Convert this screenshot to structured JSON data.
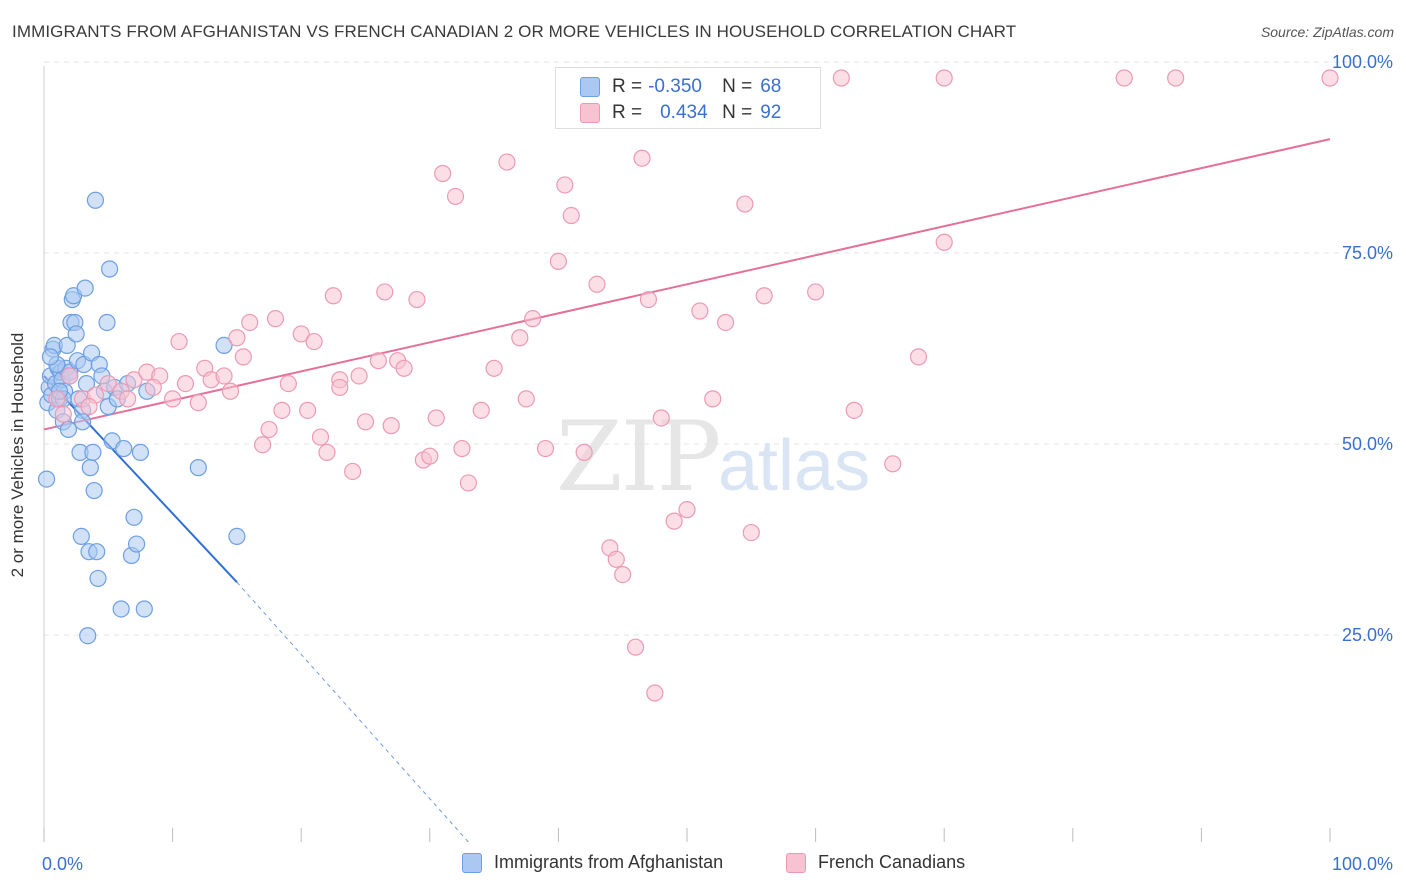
{
  "header": {
    "title": "IMMIGRANTS FROM AFGHANISTAN VS FRENCH CANADIAN 2 OR MORE VEHICLES IN HOUSEHOLD CORRELATION CHART",
    "source": "Source: ZipAtlas.com"
  },
  "watermark": {
    "zip": "ZIP",
    "atlas": "atlas"
  },
  "legend": {
    "r_label": "R =",
    "n_label": "N =",
    "series": [
      {
        "r": "-0.350",
        "n": "68"
      },
      {
        "r": "0.434",
        "n": "92"
      }
    ]
  },
  "bottom_legend": {
    "items": [
      "Immigrants from Afghanistan",
      "French Canadians"
    ]
  },
  "chart_data": {
    "type": "scatter",
    "title": "IMMIGRANTS FROM AFGHANISTAN VS FRENCH CANADIAN 2 OR MORE VEHICLES IN HOUSEHOLD CORRELATION CHART",
    "xlabel": "",
    "ylabel": "2 or more Vehicles in Household",
    "xlim": [
      0,
      100
    ],
    "ylim": [
      0,
      100
    ],
    "x_tick_labels": [
      "0.0%",
      "100.0%"
    ],
    "y_tick_labels": [
      "25.0%",
      "50.0%",
      "75.0%",
      "100.0%"
    ],
    "y_ticks": [
      25,
      50,
      75,
      100
    ],
    "grid": true,
    "legend_position": "top-center",
    "colors": {
      "blue_fill": "#aac8f2",
      "blue_stroke": "#6e9fe0",
      "blue_line": "#2f6fd6",
      "pink_fill": "#f7c2d2",
      "pink_stroke": "#ec9ab4",
      "pink_line": "#e4709a",
      "axis_text": "#3a6fd0"
    },
    "series": [
      {
        "name": "Immigrants from Afghanistan",
        "color": "blue",
        "trend": {
          "x": [
            0,
            15
          ],
          "y": [
            61,
            34
          ],
          "dash_to": [
            33,
            0
          ]
        },
        "points": [
          [
            0.3,
            57.5
          ],
          [
            0.4,
            59.5
          ],
          [
            0.5,
            61.0
          ],
          [
            0.6,
            58.5
          ],
          [
            0.7,
            64.5
          ],
          [
            0.8,
            65.0
          ],
          [
            0.9,
            60.0
          ],
          [
            1.0,
            56.5
          ],
          [
            1.1,
            62.0
          ],
          [
            1.2,
            58.0
          ],
          [
            1.3,
            61.5
          ],
          [
            1.4,
            60.5
          ],
          [
            1.5,
            55.0
          ],
          [
            1.6,
            59.0
          ],
          [
            1.7,
            62.0
          ],
          [
            1.8,
            65.0
          ],
          [
            1.9,
            54.0
          ],
          [
            2.0,
            61.5
          ],
          [
            2.1,
            68.0
          ],
          [
            2.2,
            71.0
          ],
          [
            2.3,
            71.5
          ],
          [
            2.4,
            68.0
          ],
          [
            2.5,
            66.5
          ],
          [
            2.6,
            63.0
          ],
          [
            2.7,
            58.0
          ],
          [
            2.8,
            51.0
          ],
          [
            2.9,
            40.0
          ],
          [
            3.0,
            56.5
          ],
          [
            3.1,
            62.5
          ],
          [
            3.2,
            72.5
          ],
          [
            3.3,
            60.0
          ],
          [
            3.4,
            27.0
          ],
          [
            3.5,
            38.0
          ],
          [
            3.6,
            49.0
          ],
          [
            3.7,
            64.0
          ],
          [
            3.8,
            51.0
          ],
          [
            3.9,
            46.0
          ],
          [
            4.0,
            84.0
          ],
          [
            4.1,
            38.0
          ],
          [
            4.2,
            34.5
          ],
          [
            4.3,
            62.5
          ],
          [
            4.5,
            61.0
          ],
          [
            4.7,
            59.0
          ],
          [
            4.9,
            68.0
          ],
          [
            5.0,
            57.0
          ],
          [
            5.1,
            75.0
          ],
          [
            5.3,
            52.5
          ],
          [
            5.5,
            59.5
          ],
          [
            5.7,
            58.0
          ],
          [
            6.0,
            30.5
          ],
          [
            6.2,
            51.5
          ],
          [
            6.5,
            60.0
          ],
          [
            6.8,
            37.5
          ],
          [
            7.0,
            42.5
          ],
          [
            7.2,
            39.0
          ],
          [
            7.5,
            51.0
          ],
          [
            7.8,
            30.5
          ],
          [
            8.0,
            59.0
          ],
          [
            0.2,
            47.5
          ],
          [
            1.0,
            62.5
          ],
          [
            1.5,
            58.0
          ],
          [
            2.0,
            61.0
          ],
          [
            0.5,
            63.5
          ],
          [
            3.0,
            55.0
          ],
          [
            12.0,
            49.0
          ],
          [
            14.0,
            65.0
          ],
          [
            15.0,
            40.0
          ],
          [
            1.2,
            59.0
          ]
        ]
      },
      {
        "name": "French Canadians",
        "color": "pink",
        "trend": {
          "x": [
            0,
            100
          ],
          "y": [
            54,
            92
          ]
        },
        "points": [
          [
            1.0,
            58.0
          ],
          [
            1.5,
            56.0
          ],
          [
            2.0,
            61.0
          ],
          [
            3.0,
            58.0
          ],
          [
            4.0,
            58.5
          ],
          [
            5.0,
            60.0
          ],
          [
            6.0,
            59.0
          ],
          [
            7.0,
            60.5
          ],
          [
            8.0,
            61.5
          ],
          [
            9.0,
            61.0
          ],
          [
            10.0,
            58.0
          ],
          [
            10.5,
            65.5
          ],
          [
            11.0,
            60.0
          ],
          [
            12.0,
            57.5
          ],
          [
            12.5,
            62.0
          ],
          [
            13.0,
            60.5
          ],
          [
            14.0,
            61.0
          ],
          [
            14.5,
            59.0
          ],
          [
            15.0,
            66.0
          ],
          [
            15.5,
            63.5
          ],
          [
            16.0,
            68.0
          ],
          [
            17.0,
            52.0
          ],
          [
            17.5,
            54.0
          ],
          [
            18.0,
            68.5
          ],
          [
            18.5,
            56.5
          ],
          [
            19.0,
            60.0
          ],
          [
            20.0,
            66.5
          ],
          [
            20.5,
            56.5
          ],
          [
            21.0,
            65.5
          ],
          [
            21.5,
            53.0
          ],
          [
            22.0,
            51.0
          ],
          [
            22.5,
            71.5
          ],
          [
            23.0,
            60.5
          ],
          [
            24.0,
            48.5
          ],
          [
            24.5,
            61.0
          ],
          [
            25.0,
            55.0
          ],
          [
            26.0,
            63.0
          ],
          [
            26.5,
            72.0
          ],
          [
            27.0,
            54.5
          ],
          [
            27.5,
            63.0
          ],
          [
            28.0,
            62.0
          ],
          [
            29.0,
            71.0
          ],
          [
            29.5,
            50.0
          ],
          [
            30.0,
            50.5
          ],
          [
            30.5,
            55.5
          ],
          [
            31.0,
            87.5
          ],
          [
            32.0,
            84.5
          ],
          [
            32.5,
            51.5
          ],
          [
            33.0,
            47.0
          ],
          [
            34.0,
            56.5
          ],
          [
            35.0,
            62.0
          ],
          [
            36.0,
            89.0
          ],
          [
            37.0,
            66.0
          ],
          [
            37.5,
            58.0
          ],
          [
            38.0,
            68.5
          ],
          [
            39.0,
            51.5
          ],
          [
            40.0,
            76.0
          ],
          [
            40.5,
            86.0
          ],
          [
            41.0,
            82.0
          ],
          [
            42.0,
            51.0
          ],
          [
            43.0,
            73.0
          ],
          [
            44.0,
            38.5
          ],
          [
            44.5,
            37.0
          ],
          [
            45.0,
            35.0
          ],
          [
            46.0,
            25.5
          ],
          [
            46.5,
            89.5
          ],
          [
            47.0,
            71.0
          ],
          [
            47.5,
            19.5
          ],
          [
            48.0,
            55.5
          ],
          [
            49.0,
            42.0
          ],
          [
            50.0,
            43.5
          ],
          [
            51.0,
            69.5
          ],
          [
            52.0,
            58.0
          ],
          [
            53.0,
            68.0
          ],
          [
            54.5,
            83.5
          ],
          [
            55.0,
            40.5
          ],
          [
            56.0,
            71.5
          ],
          [
            60.0,
            72.0
          ],
          [
            63.0,
            56.5
          ],
          [
            66.0,
            49.5
          ],
          [
            68.0,
            63.5
          ],
          [
            70.0,
            78.5
          ],
          [
            84.0,
            100.0
          ],
          [
            88.0,
            100.0
          ],
          [
            100.0,
            100.0
          ],
          [
            55.0,
            100.0
          ],
          [
            62.0,
            100.0
          ],
          [
            70.0,
            100.0
          ],
          [
            23.0,
            59.5
          ],
          [
            6.5,
            58.0
          ],
          [
            3.5,
            57.0
          ],
          [
            8.5,
            59.5
          ]
        ]
      }
    ]
  }
}
